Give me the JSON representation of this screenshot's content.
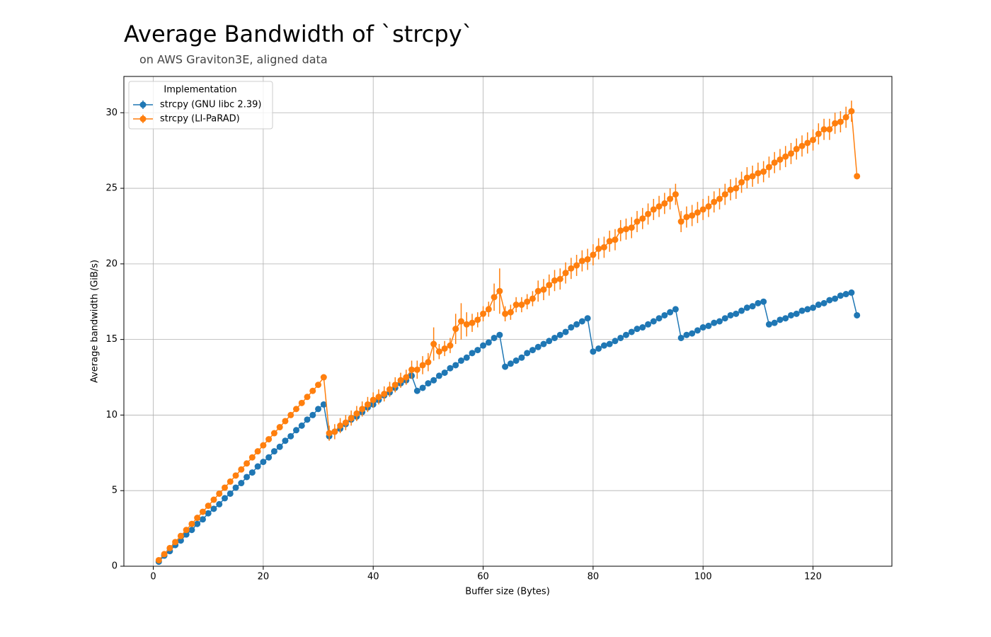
{
  "chart_data": {
    "type": "line",
    "title": "Average Bandwidth of `strcpy`",
    "subtitle": "on AWS Graviton3E, aligned data",
    "x_label": "Buffer size (Bytes)",
    "y_label": "Average bandwidth (GiB/s)",
    "legend_title": "Implementation",
    "legend": "upper left",
    "grid": true,
    "xlim": [
      -5.35,
      134.35
    ],
    "ylim": [
      0,
      32.4
    ],
    "xticks": [
      0,
      20,
      40,
      60,
      80,
      100,
      120
    ],
    "yticks": [
      0,
      5,
      10,
      15,
      20,
      25,
      30
    ],
    "x": [
      1,
      2,
      3,
      4,
      5,
      6,
      7,
      8,
      9,
      10,
      11,
      12,
      13,
      14,
      15,
      16,
      17,
      18,
      19,
      20,
      21,
      22,
      23,
      24,
      25,
      26,
      27,
      28,
      29,
      30,
      31,
      32,
      33,
      34,
      35,
      36,
      37,
      38,
      39,
      40,
      41,
      42,
      43,
      44,
      45,
      46,
      47,
      48,
      49,
      50,
      51,
      52,
      53,
      54,
      55,
      56,
      57,
      58,
      59,
      60,
      61,
      62,
      63,
      64,
      65,
      66,
      67,
      68,
      69,
      70,
      71,
      72,
      73,
      74,
      75,
      76,
      77,
      78,
      79,
      80,
      81,
      82,
      83,
      84,
      85,
      86,
      87,
      88,
      89,
      90,
      91,
      92,
      93,
      94,
      95,
      96,
      97,
      98,
      99,
      100,
      101,
      102,
      103,
      104,
      105,
      106,
      107,
      108,
      109,
      110,
      111,
      112,
      113,
      114,
      115,
      116,
      117,
      118,
      119,
      120,
      121,
      122,
      123,
      124,
      125,
      126,
      127,
      128
    ],
    "series": [
      {
        "name": "strcpy (GNU libc 2.39)",
        "color": "#1f77b4",
        "values": [
          0.3,
          0.7,
          1.0,
          1.4,
          1.7,
          2.1,
          2.4,
          2.8,
          3.1,
          3.5,
          3.8,
          4.1,
          4.5,
          4.8,
          5.2,
          5.5,
          5.9,
          6.2,
          6.6,
          6.9,
          7.2,
          7.6,
          7.9,
          8.3,
          8.6,
          9.0,
          9.3,
          9.7,
          10.0,
          10.4,
          10.7,
          8.6,
          8.9,
          9.1,
          9.4,
          9.7,
          9.9,
          10.2,
          10.5,
          10.7,
          11.0,
          11.3,
          11.5,
          11.8,
          12.1,
          12.3,
          12.6,
          11.6,
          11.8,
          12.1,
          12.3,
          12.6,
          12.8,
          13.1,
          13.3,
          13.6,
          13.8,
          14.1,
          14.3,
          14.6,
          14.8,
          15.1,
          15.3,
          13.2,
          13.4,
          13.6,
          13.8,
          14.1,
          14.3,
          14.5,
          14.7,
          14.9,
          15.1,
          15.3,
          15.5,
          15.8,
          16.0,
          16.2,
          16.4,
          14.2,
          14.4,
          14.6,
          14.7,
          14.9,
          15.1,
          15.3,
          15.5,
          15.7,
          15.8,
          16.0,
          16.2,
          16.4,
          16.6,
          16.8,
          17.0,
          15.1,
          15.3,
          15.4,
          15.6,
          15.8,
          15.9,
          16.1,
          16.2,
          16.4,
          16.6,
          16.7,
          16.9,
          17.1,
          17.2,
          17.4,
          17.5,
          16.0,
          16.1,
          16.3,
          16.4,
          16.6,
          16.7,
          16.9,
          17.0,
          17.1,
          17.3,
          17.4,
          17.6,
          17.7,
          17.9,
          18.0,
          18.1,
          16.6
        ]
      },
      {
        "name": "strcpy (LI-PaRAD)",
        "color": "#ff7f0e",
        "values": [
          0.4,
          0.8,
          1.2,
          1.6,
          2.0,
          2.4,
          2.8,
          3.2,
          3.6,
          4.0,
          4.4,
          4.8,
          5.2,
          5.6,
          6.0,
          6.4,
          6.8,
          7.2,
          7.6,
          8.0,
          8.4,
          8.8,
          9.2,
          9.6,
          10.0,
          10.4,
          10.8,
          11.2,
          11.6,
          12.0,
          12.5,
          8.8,
          8.9,
          9.3,
          9.5,
          9.8,
          10.1,
          10.4,
          10.7,
          11.0,
          11.2,
          11.4,
          11.7,
          12.0,
          12.3,
          12.5,
          13.0,
          13.0,
          13.3,
          13.5,
          14.7,
          14.2,
          14.4,
          14.6,
          15.7,
          16.2,
          16.0,
          16.1,
          16.3,
          16.7,
          17.0,
          17.8,
          18.2,
          16.7,
          16.8,
          17.3,
          17.3,
          17.5,
          17.7,
          18.2,
          18.3,
          18.6,
          18.9,
          19.0,
          19.4,
          19.7,
          19.9,
          20.2,
          20.3,
          20.6,
          21.0,
          21.1,
          21.5,
          21.6,
          22.2,
          22.3,
          22.4,
          22.8,
          23.0,
          23.3,
          23.6,
          23.8,
          24.0,
          24.3,
          24.6,
          22.8,
          23.1,
          23.2,
          23.4,
          23.6,
          23.8,
          24.1,
          24.3,
          24.6,
          24.9,
          25.0,
          25.4,
          25.7,
          25.8,
          26.0,
          26.1,
          26.4,
          26.7,
          26.9,
          27.1,
          27.3,
          27.6,
          27.8,
          28.0,
          28.2,
          28.6,
          28.9,
          28.9,
          29.3,
          29.4,
          29.7,
          30.1,
          25.8
        ],
        "errors": [
          0,
          0,
          0,
          0,
          0,
          0,
          0,
          0,
          0,
          0,
          0,
          0,
          0,
          0,
          0,
          0,
          0,
          0,
          0,
          0,
          0,
          0,
          0,
          0,
          0,
          0,
          0,
          0,
          0,
          0,
          0,
          0.5,
          0.5,
          0.5,
          0.5,
          0.5,
          0.5,
          0.5,
          0.5,
          0.5,
          0.5,
          0.5,
          0.5,
          0.5,
          0.5,
          0.5,
          0.6,
          0.6,
          0.6,
          0.6,
          1.1,
          0.5,
          0.5,
          0.5,
          1.0,
          1.2,
          0.8,
          0.6,
          0.5,
          0.5,
          0.5,
          0.9,
          1.5,
          0.5,
          0.5,
          0.5,
          0.5,
          0.5,
          0.5,
          0.7,
          0.7,
          0.7,
          0.7,
          0.7,
          0.7,
          0.7,
          0.7,
          0.7,
          0.7,
          0.7,
          0.7,
          0.7,
          0.7,
          0.7,
          0.7,
          0.7,
          0.7,
          0.7,
          0.7,
          0.7,
          0.7,
          0.7,
          0.7,
          0.7,
          0.7,
          0.7,
          0.7,
          0.7,
          0.7,
          0.7,
          0.7,
          0.7,
          0.7,
          0.7,
          0.7,
          0.7,
          0.7,
          0.7,
          0.7,
          0.7,
          0.7,
          0.7,
          0.7,
          0.7,
          0.7,
          0.7,
          0.7,
          0.7,
          0.7,
          0.7,
          0.7,
          0.7,
          0.7,
          0.7,
          0.7,
          0.7,
          0.7,
          0.1
        ]
      }
    ]
  }
}
